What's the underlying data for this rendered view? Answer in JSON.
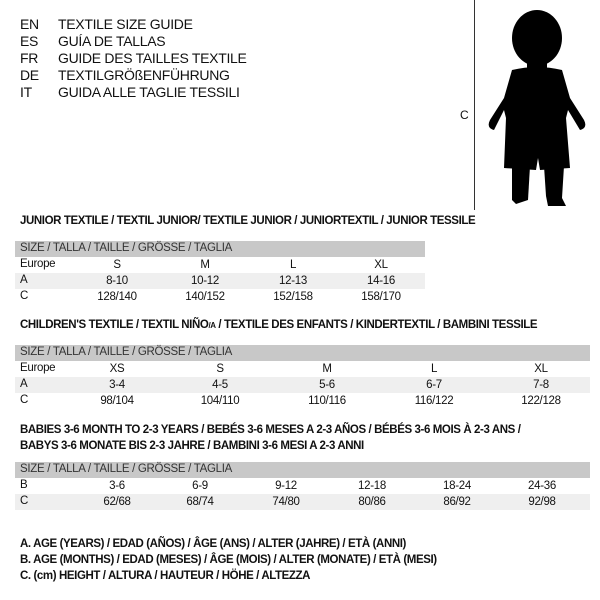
{
  "header": [
    {
      "code": "EN",
      "text": "TEXTILE SIZE GUIDE"
    },
    {
      "code": "ES",
      "text": "GUÍA DE TALLAS"
    },
    {
      "code": "FR",
      "text": "GUIDE DES TAILLES TEXTILE"
    },
    {
      "code": "DE",
      "text": "TEXTILGRÖßENFÜHRUNG"
    },
    {
      "code": "IT",
      "text": "GUIDA ALLE TAGLIE TESSILI"
    }
  ],
  "figure": {
    "height_marker": "C",
    "icon": "child-silhouette"
  },
  "junior": {
    "title": "JUNIOR TEXTILE / TEXTIL JUNIOR/ TEXTILE JUNIOR / JUNIORTEXTIL / JUNIOR TESSILE",
    "size_header": "SIZE / TALLA / TAILLE / GRÖSSE / TAGLIA",
    "rows": [
      {
        "label": "Europe",
        "values": [
          "S",
          "M",
          "L",
          "XL"
        ]
      },
      {
        "label": "A",
        "values": [
          "8-10",
          "10-12",
          "12-13",
          "14-16"
        ]
      },
      {
        "label": "C",
        "values": [
          "128/140",
          "140/152",
          "152/158",
          "158/170"
        ]
      }
    ]
  },
  "children": {
    "title": "CHILDREN'S TEXTILE / TEXTIL NIÑO/A / TEXTILE DES ENFANTS / KINDERTEXTIL / BAMBINI TESSILE",
    "size_header": "SIZE / TALLA / TAILLE / GRÖSSE / TAGLIA",
    "rows": [
      {
        "label": "Europe",
        "values": [
          "XS",
          "S",
          "M",
          "L",
          "XL"
        ]
      },
      {
        "label": "A",
        "values": [
          "3-4",
          "4-5",
          "5-6",
          "6-7",
          "7-8"
        ]
      },
      {
        "label": "C",
        "values": [
          "98/104",
          "104/110",
          "110/116",
          "116/122",
          "122/128"
        ]
      }
    ]
  },
  "babies": {
    "title_line1": "BABIES 3-6 MONTH TO 2-3 YEARS / BEBÉS 3-6 MESES A 2-3 AÑOS / BÉBÉS 3-6 MOIS À 2-3 ANS /",
    "title_line2": "BABYS 3-6 MONATE BIS 2-3 JAHRE / BAMBINI 3-6 MESI A 2-3 ANNI",
    "size_header": "SIZE / TALLA / TAILLE / GRÖSSE / TAGLIA",
    "rows": [
      {
        "label": "B",
        "values": [
          "3-6",
          "6-9",
          "9-12",
          "12-18",
          "18-24",
          "24-36"
        ]
      },
      {
        "label": "C",
        "values": [
          "62/68",
          "68/74",
          "74/80",
          "80/86",
          "86/92",
          "92/98"
        ]
      }
    ]
  },
  "legend": [
    "A. AGE (YEARS) / EDAD (AÑOS) / ÂGE (ANS) / ALTER (JAHRE) / ETÀ (ANNI)",
    "B. AGE (MONTHS) / EDAD (MESES) / ÂGE (MOIS) / ALTER (MONATE) / ETÀ (MESI)",
    "C. (cm) HEIGHT / ALTURA / HAUTEUR / HÖHE / ALTEZZA"
  ]
}
